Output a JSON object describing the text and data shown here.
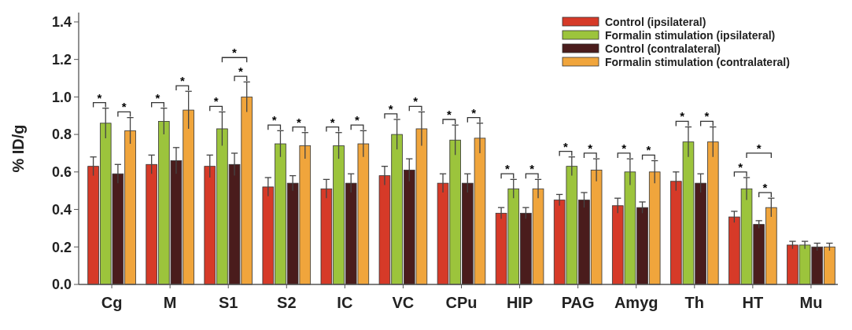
{
  "chart_data": {
    "type": "bar",
    "ylabel": "% ID/g",
    "categories": [
      "Cg",
      "M",
      "S1",
      "S2",
      "IC",
      "VC",
      "CPu",
      "HIP",
      "PAG",
      "Amyg",
      "Th",
      "HT",
      "Mu"
    ],
    "series": [
      {
        "name": "Control (ipsilateral)",
        "color": "#d63a28",
        "values": [
          0.63,
          0.64,
          0.63,
          0.52,
          0.51,
          0.58,
          0.54,
          0.38,
          0.45,
          0.42,
          0.55,
          0.36,
          0.21
        ],
        "errors": [
          0.05,
          0.05,
          0.06,
          0.05,
          0.05,
          0.05,
          0.05,
          0.03,
          0.03,
          0.04,
          0.05,
          0.03,
          0.02
        ]
      },
      {
        "name": "Formalin stimulation (ipsilateral)",
        "color": "#9cc43c",
        "values": [
          0.86,
          0.87,
          0.83,
          0.75,
          0.74,
          0.8,
          0.77,
          0.51,
          0.63,
          0.6,
          0.76,
          0.51,
          0.21
        ],
        "errors": [
          0.08,
          0.07,
          0.09,
          0.07,
          0.07,
          0.08,
          0.08,
          0.05,
          0.05,
          0.07,
          0.08,
          0.06,
          0.02
        ]
      },
      {
        "name": "Control (contralateral)",
        "color": "#4a1c1c",
        "values": [
          0.59,
          0.66,
          0.64,
          0.54,
          0.54,
          0.61,
          0.54,
          0.38,
          0.45,
          0.41,
          0.54,
          0.32,
          0.2
        ],
        "errors": [
          0.05,
          0.07,
          0.06,
          0.04,
          0.05,
          0.06,
          0.05,
          0.03,
          0.04,
          0.03,
          0.05,
          0.02,
          0.02
        ]
      },
      {
        "name": "Formalin stimulation (contralateral)",
        "color": "#f0a53c",
        "values": [
          0.82,
          0.93,
          1.0,
          0.74,
          0.75,
          0.83,
          0.78,
          0.51,
          0.61,
          0.6,
          0.76,
          0.41,
          0.2
        ],
        "errors": [
          0.07,
          0.1,
          0.08,
          0.07,
          0.07,
          0.09,
          0.08,
          0.05,
          0.06,
          0.06,
          0.08,
          0.05,
          0.02
        ]
      }
    ],
    "ylim": [
      0,
      1.45
    ],
    "yticks": [
      {
        "value": 0.0,
        "label": "0.0"
      },
      {
        "value": 0.2,
        "label": "0.2"
      },
      {
        "value": 0.4,
        "label": "0.4"
      },
      {
        "value": 0.6,
        "label": "0.6"
      },
      {
        "value": 0.8,
        "label": "0.8"
      },
      {
        "value": 1.0,
        "label": "1.0"
      },
      {
        "value": 1.2,
        "label": "1.2"
      },
      {
        "value": 1.4,
        "label": "1.4"
      }
    ],
    "legend": "top right",
    "grid": false,
    "annotations": [
      "*",
      "*",
      "*",
      "*",
      "*",
      "*",
      "*",
      "*",
      "*",
      "*",
      "*",
      "*",
      "*",
      "*",
      "*",
      "*",
      "*",
      "*",
      "*",
      "*",
      "*",
      "*",
      "*",
      "*",
      "*",
      "*"
    ]
  }
}
